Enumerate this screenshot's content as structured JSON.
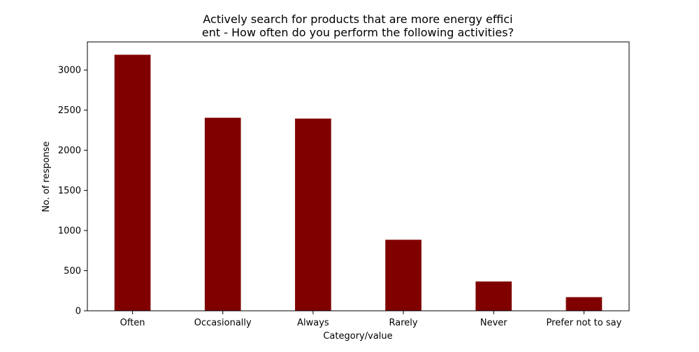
{
  "chart_data": {
    "type": "bar",
    "title": [
      "Actively search for products that are more energy effici",
      "ent - How often do you perform the following activities?"
    ],
    "xlabel": "Category/value",
    "ylabel": "No. of response",
    "categories": [
      "Often",
      "Occasionally",
      "Always",
      "Rarely",
      "Never",
      "Prefer not to say"
    ],
    "values": [
      3190,
      2405,
      2395,
      885,
      365,
      170
    ],
    "ylim": [
      0,
      3350
    ],
    "yticks": [
      0,
      500,
      1000,
      1500,
      2000,
      2500,
      3000
    ],
    "bar_color": "#800000",
    "grid": false,
    "legend": false
  }
}
